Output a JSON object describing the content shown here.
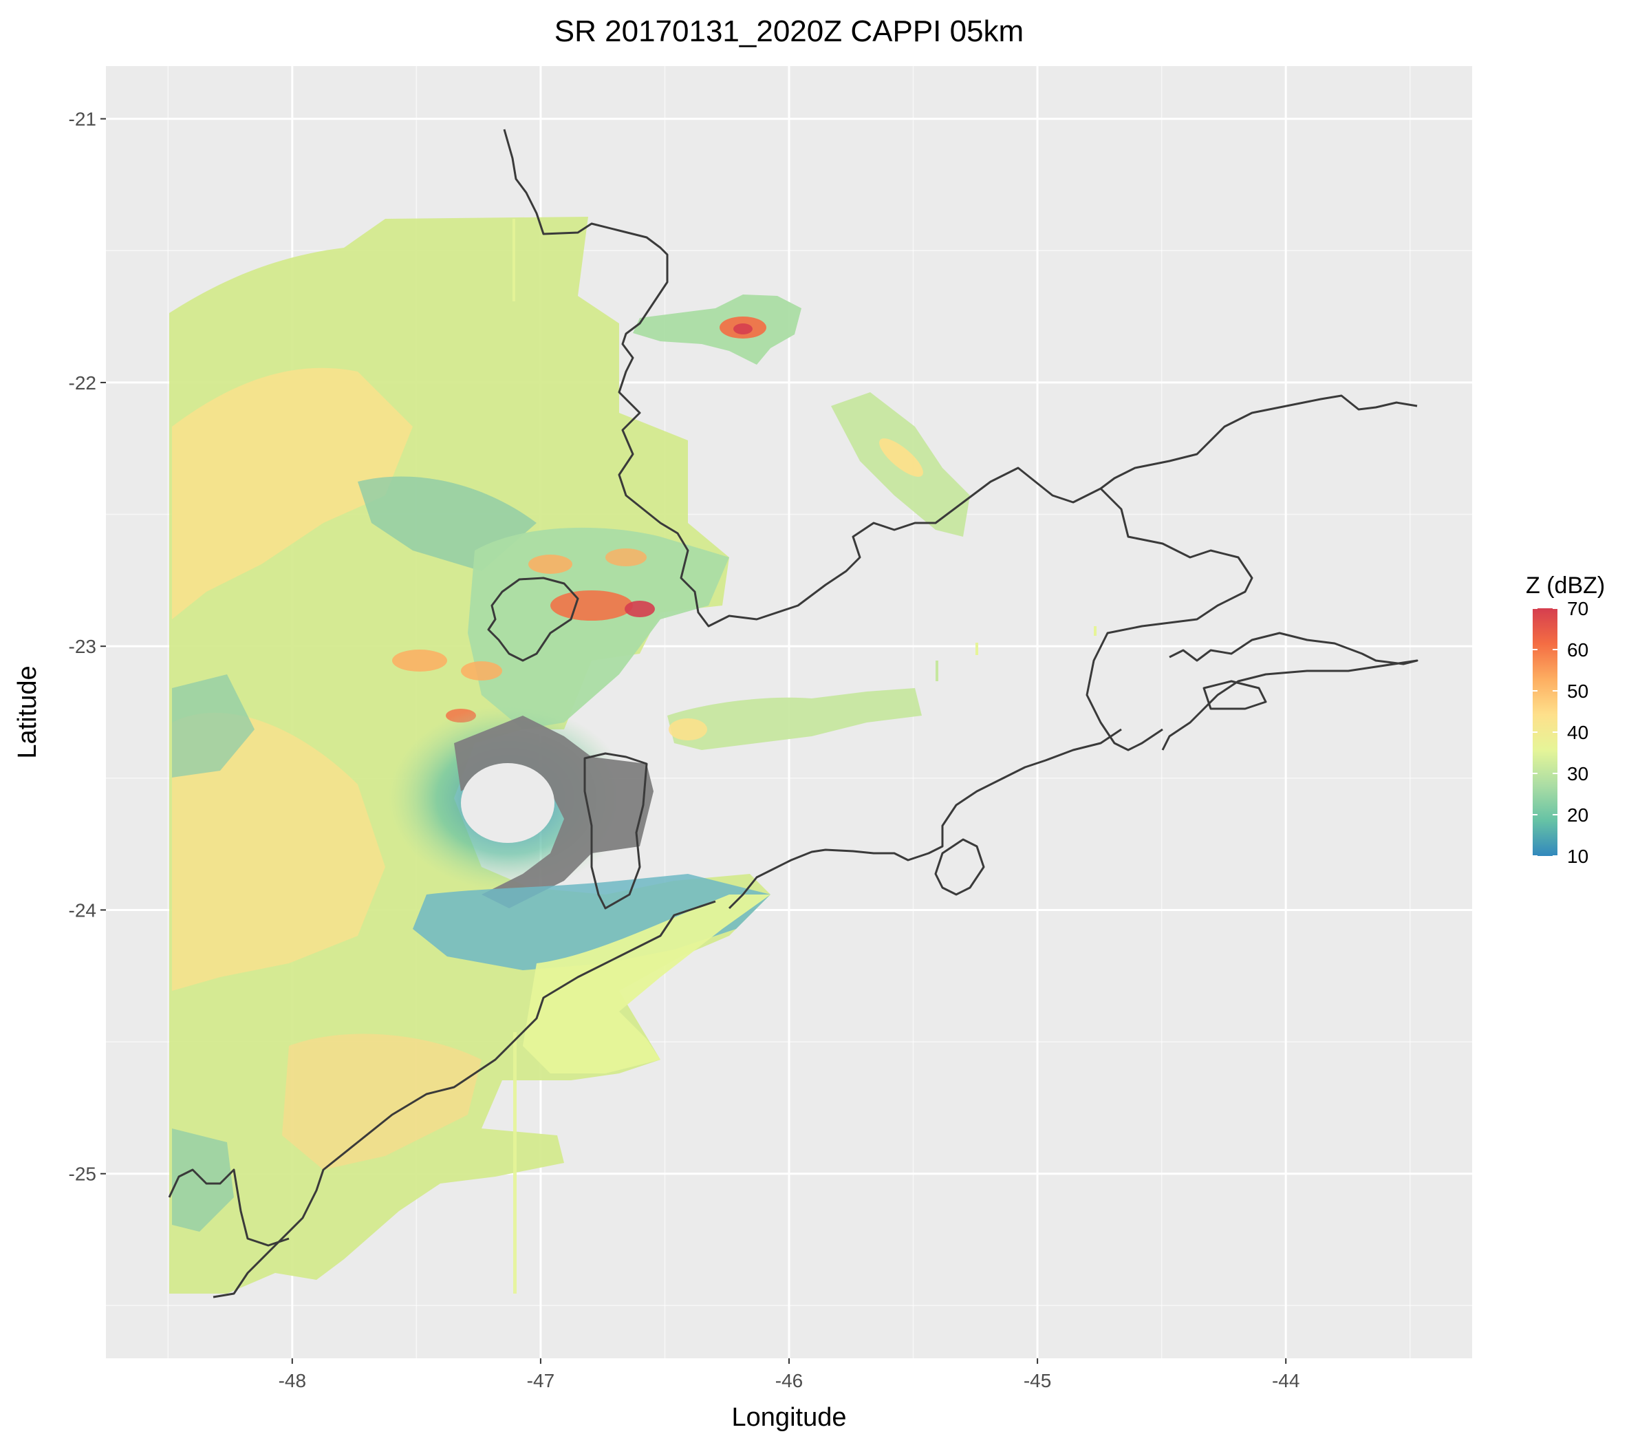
{
  "chart_data": {
    "type": "heatmap",
    "title": "SR 20170131_2020Z  CAPPI 05km",
    "xlabel": "Longitude",
    "ylabel": "Latitude",
    "xlim": [
      -48.75,
      -43.25
    ],
    "ylim": [
      -25.7,
      -20.8
    ],
    "x_ticks": [
      -48,
      -47,
      -46,
      -45,
      -44
    ],
    "x_tick_labels": [
      "-48",
      "-47",
      "-46",
      "-45",
      "-44"
    ],
    "y_ticks": [
      -21,
      -22,
      -23,
      -24,
      -25
    ],
    "y_tick_labels": [
      "-21",
      "-22",
      "-23",
      "-24",
      "-25"
    ],
    "grid": true,
    "legend": {
      "title": "Z (dBZ)",
      "position": "right",
      "min": 10,
      "max": 70,
      "breaks": [
        10,
        20,
        30,
        40,
        50,
        60,
        70
      ],
      "break_labels": [
        "10",
        "20",
        "30",
        "40",
        "50",
        "60",
        "70"
      ],
      "palette": [
        "#3288bd",
        "#66c2a5",
        "#abdda4",
        "#e6f598",
        "#fee08b",
        "#fdae61",
        "#f46d43",
        "#d53e4f"
      ]
    },
    "radar": {
      "center": [
        -47.1,
        -23.6
      ],
      "coverage_lon": [
        -48.5,
        -44.0
      ],
      "coverage_lat": [
        -25.5,
        -21.35
      ],
      "no_signal_color": "#7f7f7f"
    },
    "echo_regions": [
      {
        "label": "main-stratiform",
        "lon": [
          -48.5,
          -46.9
        ],
        "lat": [
          -25.5,
          -21.35
        ],
        "dbz": 30
      },
      {
        "label": "convective-cells",
        "lon": [
          -47.5,
          -46.5
        ],
        "lat": [
          -23.2,
          -22.4
        ],
        "dbz": 50
      },
      {
        "label": "northeast-cell",
        "lon": [
          -46.45,
          -45.95
        ],
        "lat": [
          -21.95,
          -21.65
        ],
        "dbz": 55
      },
      {
        "label": "band-east",
        "lon": [
          -45.85,
          -45.3
        ],
        "lat": [
          -22.6,
          -22.05
        ],
        "dbz": 35
      },
      {
        "label": "streak-east",
        "lon": [
          -46.5,
          -45.45
        ],
        "lat": [
          -23.35,
          -23.15
        ],
        "dbz": 30
      },
      {
        "label": "southern-tail",
        "lon": [
          -47.2,
          -45.95
        ],
        "lat": [
          -24.7,
          -23.85
        ],
        "dbz": 30
      }
    ],
    "map_features": [
      "state borders",
      "coastline"
    ]
  },
  "colors": {
    "panel_background": "#ebebeb",
    "grid_major": "#ffffff",
    "border_line": "#3a3a3a"
  }
}
